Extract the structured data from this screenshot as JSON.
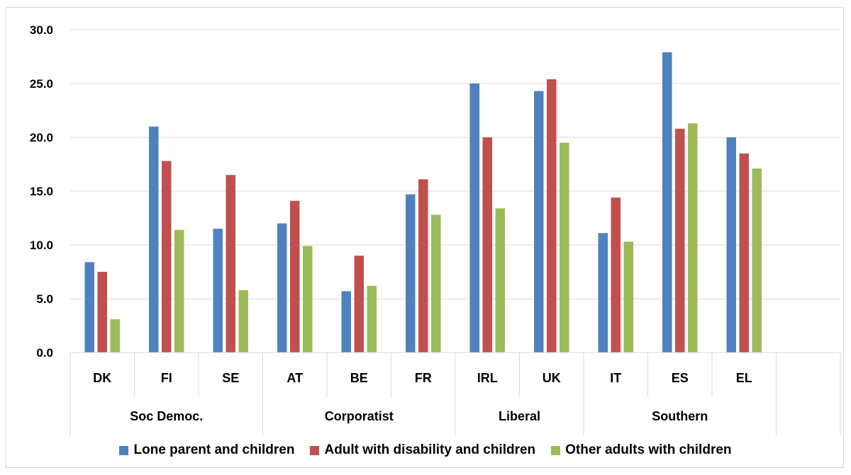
{
  "chart_data": {
    "type": "bar",
    "y_ticks": [
      "0.0",
      "5.0",
      "10.0",
      "15.0",
      "20.0",
      "25.0",
      "30.0"
    ],
    "ylim": [
      0,
      30
    ],
    "grid": true,
    "legend_position": "bottom",
    "categories": [
      "DK",
      "FI",
      "SE",
      "AT",
      "BE",
      "FR",
      "IRL",
      "UK",
      "IT",
      "ES",
      "EL"
    ],
    "groups": [
      {
        "label": "Soc Democ.",
        "count": 3
      },
      {
        "label": "Corporatist",
        "count": 3
      },
      {
        "label": "Liberal",
        "count": 2
      },
      {
        "label": "Southern",
        "count": 3
      }
    ],
    "series": [
      {
        "name": "Lone parent and children",
        "color": "#4f81bd",
        "values": [
          8.4,
          21.0,
          11.5,
          12.0,
          5.7,
          14.7,
          25.0,
          24.3,
          11.1,
          27.9,
          20.0
        ]
      },
      {
        "name": "Adult with disability and children",
        "color": "#c0504d",
        "values": [
          7.5,
          17.8,
          16.5,
          14.1,
          9.0,
          16.1,
          20.0,
          25.4,
          14.4,
          20.8,
          18.5
        ]
      },
      {
        "name": "Other adults with children",
        "color": "#9bbb59",
        "values": [
          3.1,
          11.4,
          5.8,
          9.9,
          6.2,
          12.8,
          13.4,
          19.5,
          10.3,
          21.3,
          17.1
        ]
      }
    ]
  }
}
